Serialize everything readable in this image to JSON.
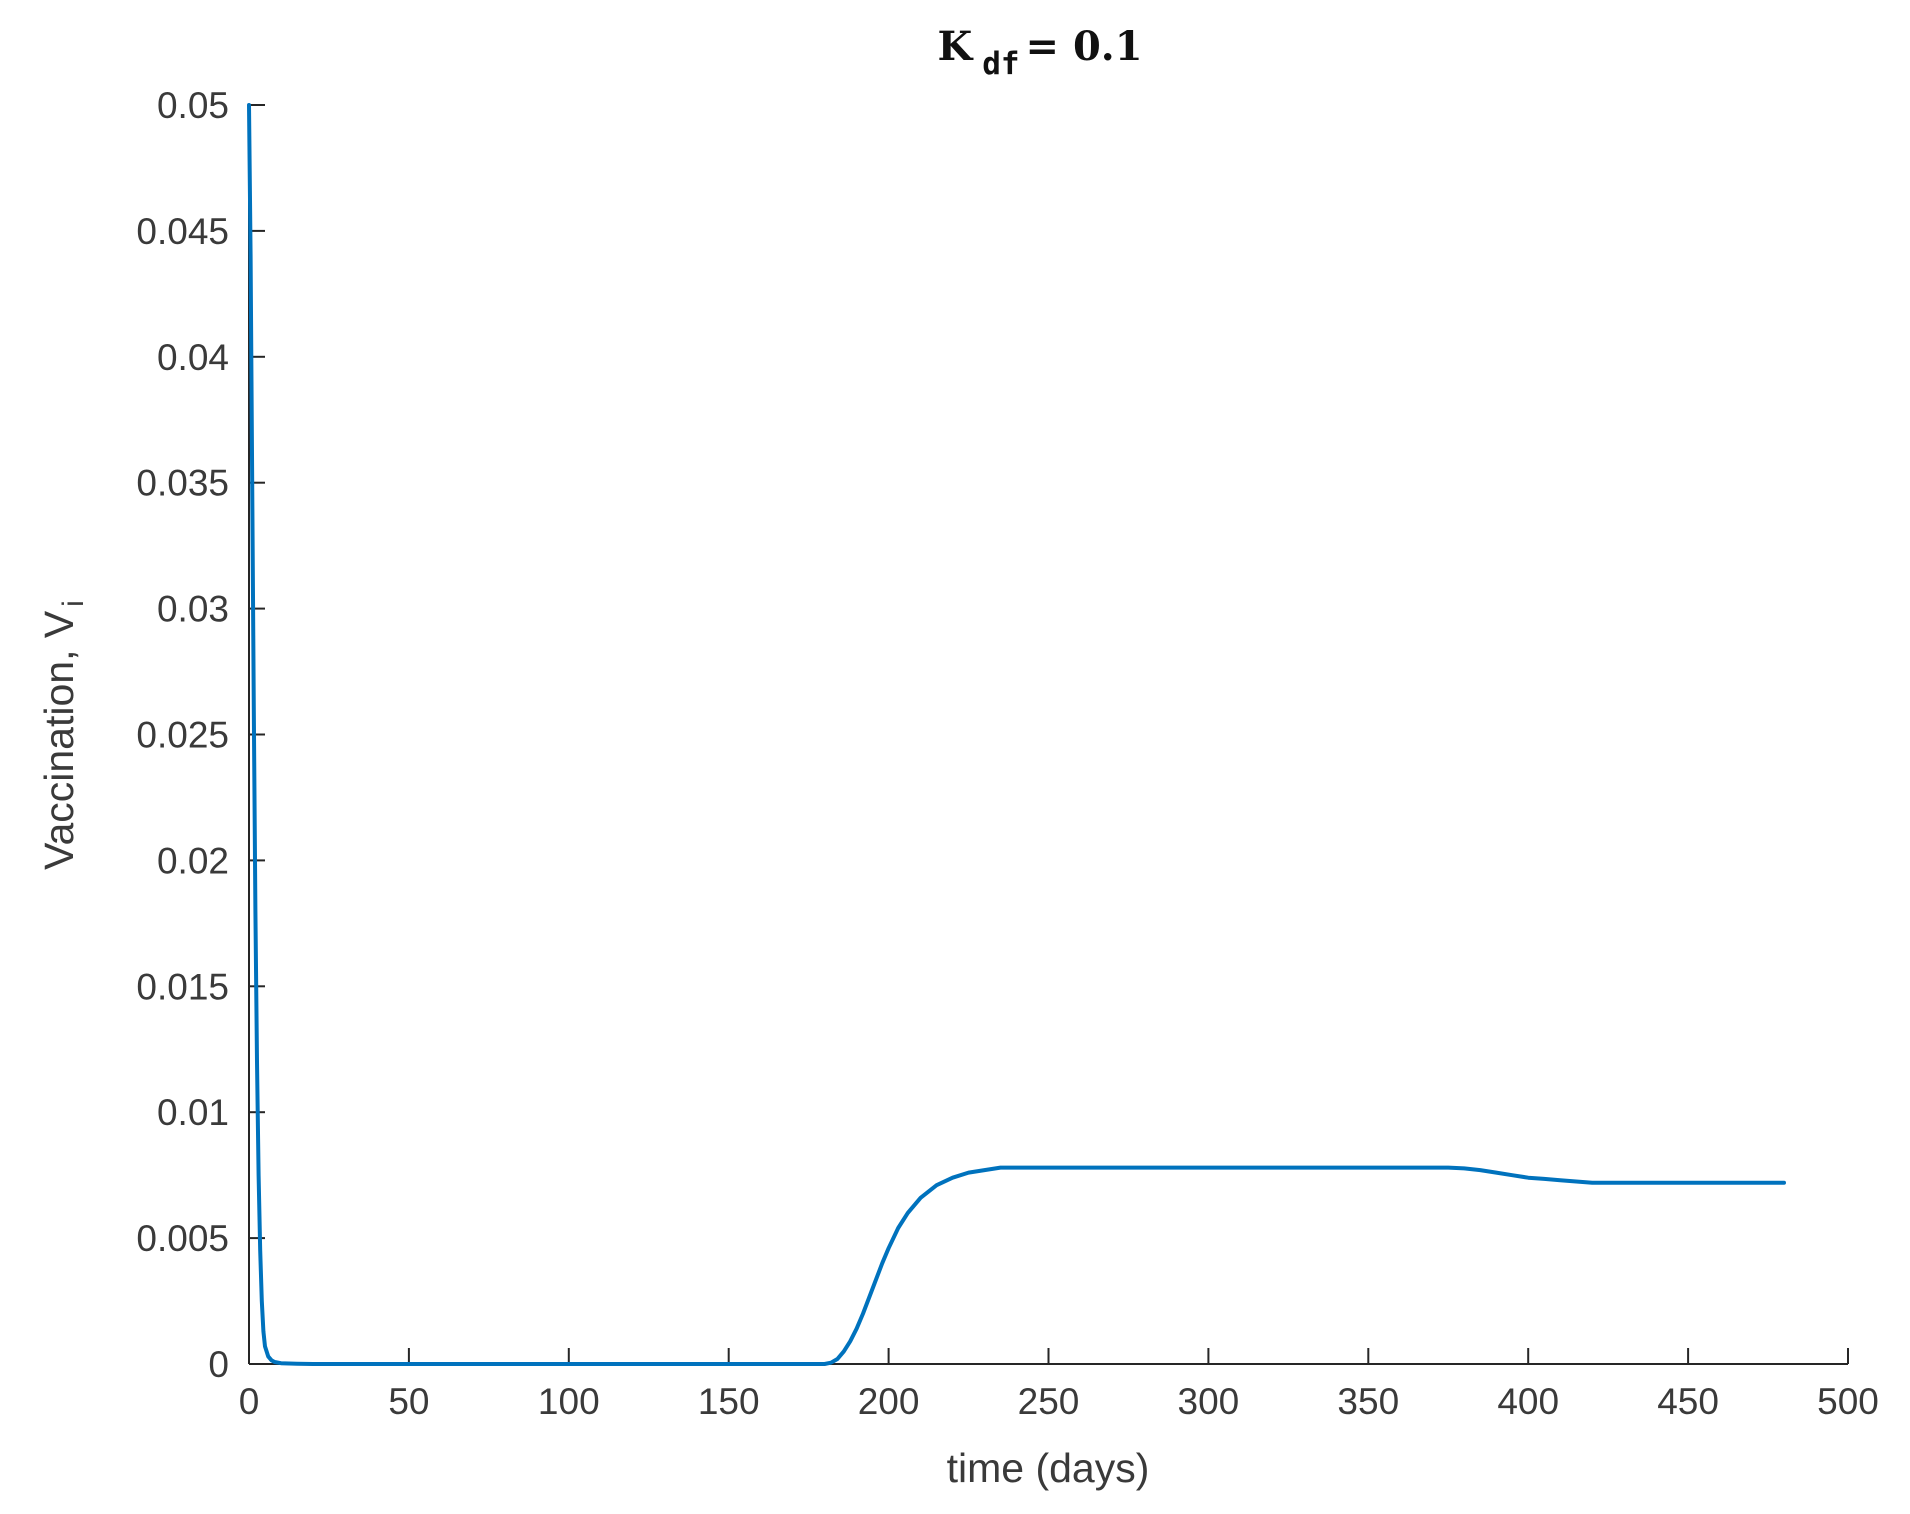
{
  "chart_data": {
    "type": "line",
    "title": {
      "base": "K",
      "subscript": "df",
      "suffix": "= 0.1"
    },
    "xlabel": "time (days)",
    "ylabel": {
      "base": "Vaccination, V",
      "subscript": "i"
    },
    "xlim": [
      0,
      500
    ],
    "ylim": [
      0,
      0.05
    ],
    "xticks": [
      0,
      50,
      100,
      150,
      200,
      250,
      300,
      350,
      400,
      450,
      500
    ],
    "xtick_labels": [
      "0",
      "50",
      "100",
      "150",
      "200",
      "250",
      "300",
      "350",
      "400",
      "450",
      "500"
    ],
    "yticks": [
      0,
      0.005,
      0.01,
      0.015,
      0.02,
      0.025,
      0.03,
      0.035,
      0.04,
      0.045,
      0.05
    ],
    "ytick_labels": [
      "0",
      "0.005",
      "0.01",
      "0.015",
      "0.02",
      "0.025",
      "0.03",
      "0.035",
      "0.04",
      "0.045",
      "0.05"
    ],
    "grid": false,
    "box": false,
    "line_color": "#0072BD",
    "series": [
      {
        "x": [
          0,
          0.5,
          1,
          1.5,
          2,
          2.5,
          3,
          3.5,
          4,
          4.5,
          5,
          6,
          7,
          8,
          10,
          15,
          20,
          50,
          100,
          150,
          175,
          180,
          182,
          184,
          186,
          188,
          190,
          192,
          195,
          198,
          200,
          203,
          206,
          210,
          215,
          220,
          225,
          230,
          235,
          240,
          250,
          260,
          300,
          350,
          375,
          380,
          385,
          390,
          395,
          400,
          405,
          410,
          420,
          430,
          450,
          470,
          480
        ],
        "y": [
          0.05,
          0.044,
          0.035,
          0.026,
          0.018,
          0.012,
          0.0075,
          0.0045,
          0.0025,
          0.0013,
          0.0007,
          0.0003,
          0.00015,
          8e-05,
          3e-05,
          1e-05,
          0,
          0,
          0,
          0,
          0,
          0,
          5e-05,
          0.0002,
          0.0005,
          0.0009,
          0.0014,
          0.002,
          0.003,
          0.004,
          0.0046,
          0.0054,
          0.006,
          0.0066,
          0.0071,
          0.0074,
          0.0076,
          0.0077,
          0.0078,
          0.0078,
          0.0078,
          0.0078,
          0.0078,
          0.0078,
          0.0078,
          0.00777,
          0.0077,
          0.0076,
          0.0075,
          0.0074,
          0.00735,
          0.0073,
          0.0072,
          0.0072,
          0.0072,
          0.0072,
          0.0072
        ]
      }
    ]
  }
}
